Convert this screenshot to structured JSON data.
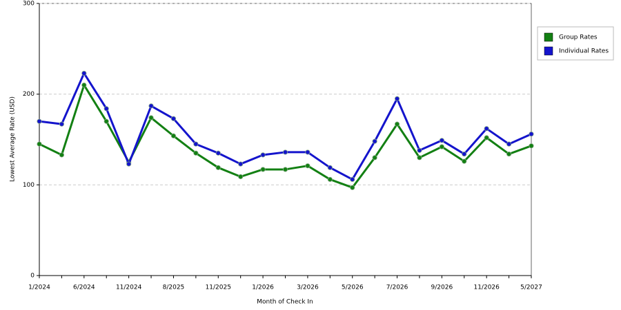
{
  "chart_data": {
    "type": "line",
    "x_label": "Month of Check In",
    "y_label": "Lowest Average Rate (USD)",
    "categories": [
      "1/2024",
      null,
      "6/2024",
      null,
      "11/2024",
      null,
      "8/2025",
      null,
      "11/2025",
      null,
      "1/2026",
      null,
      "3/2026",
      null,
      "5/2026",
      null,
      "7/2026",
      null,
      "9/2026",
      null,
      "11/2026",
      null,
      "5/2027"
    ],
    "series": [
      {
        "name": "Group Rates",
        "color": "#138013",
        "values": [
          145,
          133,
          210,
          170,
          125,
          174,
          154,
          135,
          119,
          109,
          117,
          117,
          121,
          106,
          97,
          130,
          167,
          130,
          142,
          126,
          152,
          134,
          143
        ]
      },
      {
        "name": "Individual Rates",
        "color": "#1414cc",
        "values": [
          170,
          167,
          223,
          184,
          123,
          187,
          173,
          145,
          135,
          123,
          133,
          136,
          136,
          119,
          106,
          148,
          195,
          138,
          149,
          134,
          162,
          145,
          156
        ]
      }
    ],
    "ylim": [
      0,
      300
    ],
    "yticks": [
      0,
      100,
      200,
      300
    ],
    "grid": true,
    "legend": "right"
  }
}
